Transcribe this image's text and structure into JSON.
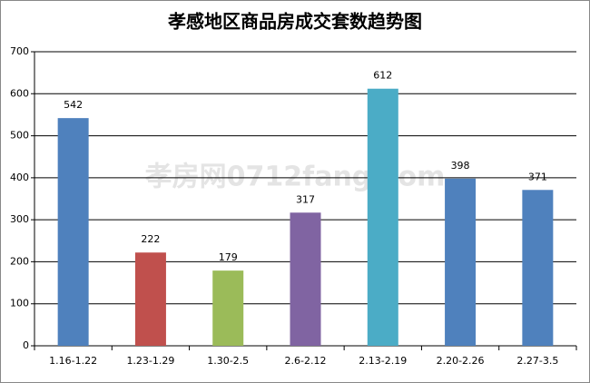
{
  "chart_data": {
    "type": "bar",
    "title": "孝感地区商品房成交套数趋势图",
    "categories": [
      "1.16-1.22",
      "1.23-1.29",
      "1.30-2.5",
      "2.6-2.12",
      "2.13-2.19",
      "2.20-2.26",
      "2.27-3.5"
    ],
    "values": [
      542,
      222,
      179,
      317,
      612,
      398,
      371
    ],
    "colors": [
      "#4f81bd",
      "#c0504d",
      "#9bbb59",
      "#8064a2",
      "#4bacc6",
      "#4f81bd",
      "#4f81bd"
    ],
    "ylim": [
      0,
      700
    ],
    "yticks": [
      0,
      100,
      200,
      300,
      400,
      500,
      600,
      700
    ],
    "grid": true,
    "watermark": "孝房网0712fang.com"
  }
}
